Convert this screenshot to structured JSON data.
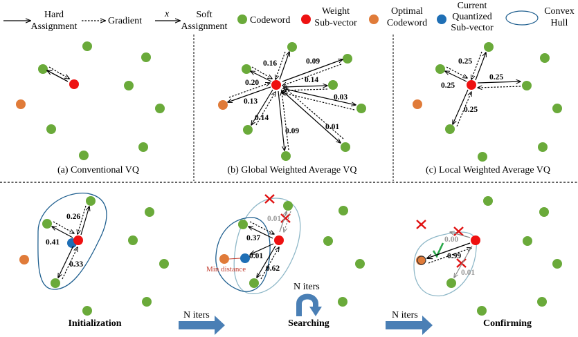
{
  "legend": {
    "hard": "Hard\nAssignment",
    "gradient": "Gradient",
    "x_symbol": "x",
    "soft": "Soft\nAssignment",
    "codeword": "Codeword",
    "weight": "Weight\nSub-vector",
    "optimal": "Optimal\nCodeword",
    "current": "Current\nQuantized\nSub-vector",
    "hull": "Convex\nHull"
  },
  "colors": {
    "codeword": "#6aaa3a",
    "weight": "#ee1111",
    "optimal": "#e07b39",
    "current": "#1f6fb5",
    "hull_dark": "#1f5f8f",
    "hull_light": "#8fb8c8",
    "cross": "#e01010",
    "check": "#2aa84a",
    "arrow_blue": "#4a7fb5"
  },
  "panels": {
    "a": {
      "caption": "(a) Conventional VQ"
    },
    "b": {
      "caption": "(b) Global Weighted Average VQ",
      "weights": [
        "0.16",
        "0.09",
        "0.20",
        "0.14",
        "0.13",
        "0.03",
        "0.14",
        "0.09",
        "0.01"
      ]
    },
    "c": {
      "caption": "(c) Local Weighted Average VQ",
      "weights": [
        "0.25",
        "0.25",
        "0.25",
        "0.25"
      ]
    }
  },
  "stages": {
    "init": {
      "label": "Initialization",
      "weights": [
        "0.26",
        "0.41",
        "0.33"
      ]
    },
    "search": {
      "label": "Searching",
      "weights": [
        "0.01",
        "0.37",
        "0.01",
        "0.62"
      ],
      "min_distance": "Min distance",
      "loop_label": "N iters"
    },
    "confirm": {
      "label": "Confirming",
      "weights": [
        "0.00",
        "0.99",
        "0.01"
      ]
    },
    "transition_1": "N iters",
    "transition_2": "N iters"
  }
}
